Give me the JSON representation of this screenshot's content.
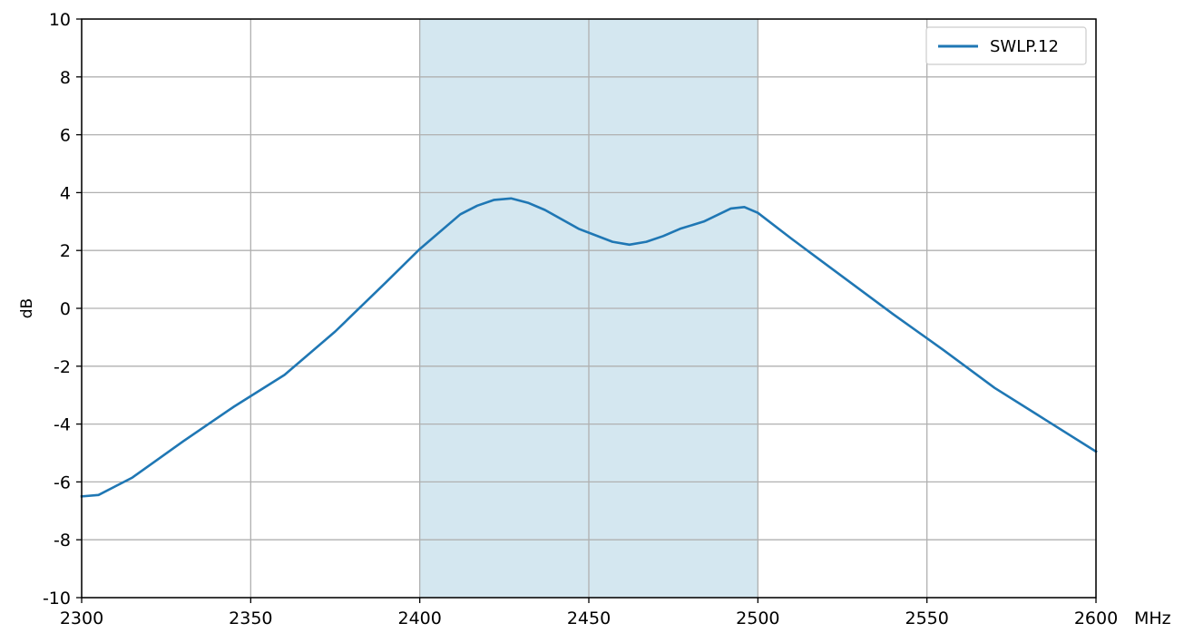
{
  "chart_data": {
    "type": "line",
    "title": "",
    "xlabel": "",
    "x_unit_label": "MHz",
    "ylabel": "dB",
    "xlim": [
      2300,
      2600
    ],
    "ylim": [
      -10,
      10
    ],
    "x_ticks": [
      2300,
      2350,
      2400,
      2450,
      2500,
      2550,
      2600
    ],
    "y_ticks": [
      -10,
      -8,
      -6,
      -4,
      -2,
      0,
      2,
      4,
      6,
      8,
      10
    ],
    "grid": true,
    "legend_position": "top-right",
    "shaded_band": {
      "x_start": 2400,
      "x_end": 2500,
      "color": "#d4e7f0"
    },
    "series": [
      {
        "name": "SWLP.12",
        "color": "#1f77b4",
        "x": [
          2300,
          2305,
          2315,
          2330,
          2345,
          2360,
          2375,
          2390,
          2400,
          2412,
          2417,
          2422,
          2427,
          2432,
          2437,
          2447,
          2457,
          2462,
          2467,
          2472,
          2477,
          2484,
          2492,
          2496,
          2500,
          2510,
          2525,
          2540,
          2555,
          2570,
          2585,
          2600
        ],
        "y": [
          -6.5,
          -6.45,
          -5.85,
          -4.6,
          -3.4,
          -2.3,
          -0.8,
          0.9,
          2.05,
          3.25,
          3.55,
          3.75,
          3.8,
          3.65,
          3.4,
          2.75,
          2.3,
          2.2,
          2.3,
          2.5,
          2.75,
          3.0,
          3.45,
          3.5,
          3.3,
          2.4,
          1.1,
          -0.2,
          -1.45,
          -2.75,
          -3.85,
          -4.95
        ]
      }
    ]
  }
}
